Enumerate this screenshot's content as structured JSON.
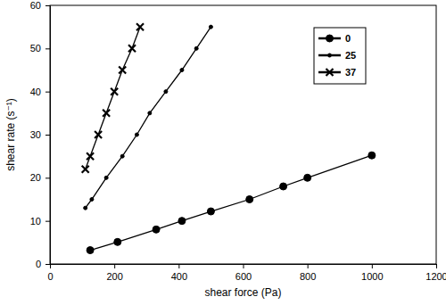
{
  "chart_data": {
    "type": "line",
    "x_label": "shear force (Pa)",
    "y_label": "shear rate (s⁻¹)",
    "xlim": [
      0,
      1200
    ],
    "xticks": [
      0,
      200,
      400,
      600,
      800,
      1000,
      1200
    ],
    "ylim": [
      0,
      60
    ],
    "yticks": [
      0,
      10,
      20,
      30,
      40,
      50,
      60
    ],
    "grid": false,
    "legend": "upper right",
    "series": [
      {
        "name": "0",
        "color": "#000000",
        "marker": "circle",
        "line_style": "solid",
        "x": [
          125,
          210,
          330,
          410,
          500,
          620,
          725,
          800,
          1000
        ],
        "values": [
          3.2,
          5.1,
          8,
          10,
          12.2,
          15,
          18,
          20,
          25.2
        ]
      },
      {
        "name": "25",
        "color": "#000000",
        "marker": "dot",
        "line_style": "solid",
        "x": [
          110,
          130,
          175,
          225,
          270,
          310,
          360,
          410,
          455,
          500
        ],
        "values": [
          13,
          15,
          20,
          25,
          30,
          35,
          40,
          45,
          50,
          55
        ]
      },
      {
        "name": "37",
        "color": "#000000",
        "marker": "x",
        "line_style": "solid",
        "x": [
          110,
          125,
          150,
          175,
          200,
          225,
          255,
          280
        ],
        "values": [
          22,
          25,
          30,
          35,
          40,
          45,
          50,
          55
        ]
      }
    ]
  }
}
